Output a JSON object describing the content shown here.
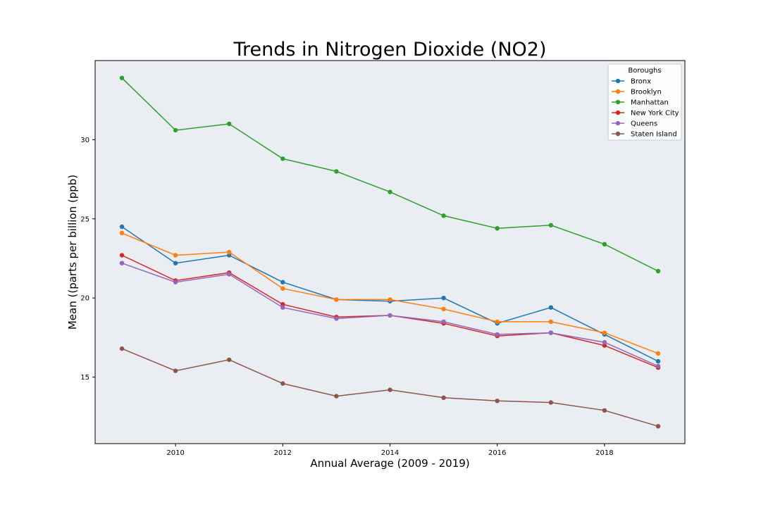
{
  "chart_data": {
    "type": "line",
    "title": "Trends in Nitrogen Dioxide (NO2)",
    "xlabel": "Annual Average (2009 - 2019)",
    "ylabel": "Mean ((parts per billion (ppb)",
    "x": [
      2009,
      2010,
      2011,
      2012,
      2013,
      2014,
      2015,
      2016,
      2017,
      2018,
      2019
    ],
    "xlim": [
      2008.5,
      2019.5
    ],
    "ylim": [
      10.8,
      35.0
    ],
    "xticks": [
      2010,
      2012,
      2014,
      2016,
      2018
    ],
    "yticks": [
      15,
      20,
      25,
      30
    ],
    "grid": false,
    "plot_background": "#eaedf1",
    "legend": {
      "title": "Boroughs",
      "placement": "top-right"
    },
    "series": [
      {
        "name": "Bronx",
        "color": "#1f77b4",
        "values": [
          24.5,
          22.2,
          22.7,
          21.0,
          19.9,
          19.8,
          20.0,
          18.4,
          19.4,
          17.7,
          16.0
        ]
      },
      {
        "name": "Brooklyn",
        "color": "#ff7f0e",
        "values": [
          24.1,
          22.7,
          22.9,
          20.6,
          19.9,
          19.9,
          19.3,
          18.5,
          18.5,
          17.8,
          16.5
        ]
      },
      {
        "name": "Manhattan",
        "color": "#2ca02c",
        "values": [
          33.9,
          30.6,
          31.0,
          28.8,
          28.0,
          26.7,
          25.2,
          24.4,
          24.6,
          23.4,
          21.7
        ]
      },
      {
        "name": "New York City",
        "color": "#d62728",
        "values": [
          22.7,
          21.1,
          21.6,
          19.6,
          18.8,
          18.9,
          18.4,
          17.6,
          17.8,
          17.0,
          15.6
        ]
      },
      {
        "name": "Queens",
        "color": "#9467bd",
        "values": [
          22.2,
          21.0,
          21.5,
          19.4,
          18.7,
          18.9,
          18.5,
          17.7,
          17.8,
          17.2,
          15.7
        ]
      },
      {
        "name": "Staten Island",
        "color": "#8c564b",
        "values": [
          16.8,
          15.4,
          16.1,
          14.6,
          13.8,
          14.2,
          13.7,
          13.5,
          13.4,
          12.9,
          11.9
        ]
      }
    ]
  }
}
